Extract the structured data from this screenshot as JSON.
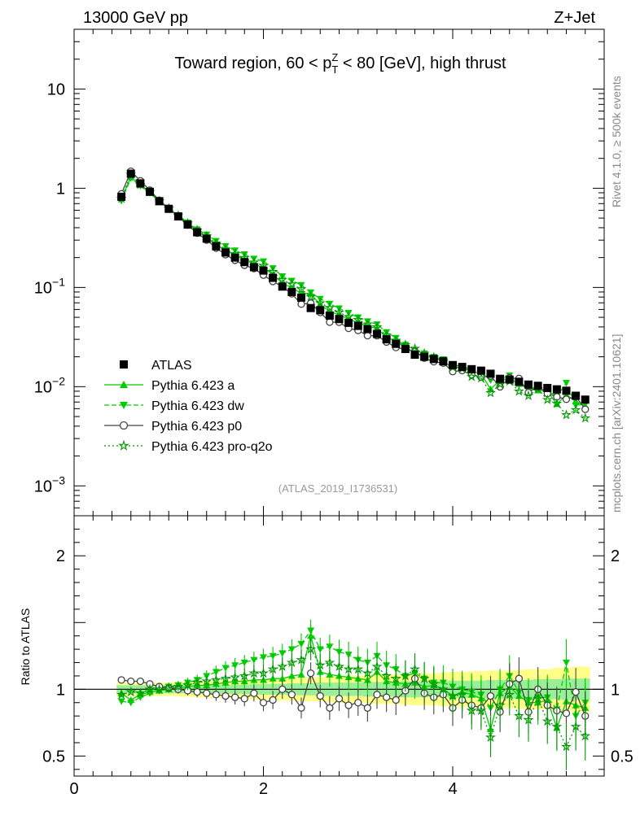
{
  "header": {
    "energy": "13000 GeV pp",
    "process": "Z+Jet"
  },
  "side_labels": {
    "rivet": "Rivet 4.1.0, ≥ 500k events",
    "site": "mcplots.cern.ch [arXiv:2401.10621]"
  },
  "chart_data": {
    "type": "line",
    "title_pre": "Toward region, 60 < p",
    "title_sup": "Z",
    "title_sub": "T",
    "title_post": " < 80 [GeV], high thrust",
    "watermark": "(ATLAS_2019_I1736531)",
    "xlim": [
      0,
      5.6
    ],
    "ylim": [
      0.0005,
      40
    ],
    "yscale": "log",
    "ratio_ylabel": "Ratio to ATLAS",
    "ratio_ylim": [
      0.35,
      2.3
    ],
    "main_ytick_labels": [
      {
        "value": 10,
        "base": "10",
        "exp": ""
      },
      {
        "value": 1,
        "base": "1",
        "exp": ""
      },
      {
        "value": 0.1,
        "base": "10",
        "exp": "−1"
      },
      {
        "value": 0.01,
        "base": "10",
        "exp": "−2"
      },
      {
        "value": 0.001,
        "base": "10",
        "exp": "−3"
      }
    ],
    "ratio_ytick_labels": [
      {
        "value": 2,
        "label": "2"
      },
      {
        "value": 1,
        "label": "1"
      },
      {
        "value": 0.5,
        "label": "0.5"
      }
    ],
    "xtick_labels": [
      {
        "value": 0,
        "label": "0"
      },
      {
        "value": 2,
        "label": "2"
      },
      {
        "value": 4,
        "label": "4"
      }
    ],
    "x": [
      0.5,
      0.6,
      0.7,
      0.8,
      0.9,
      1.0,
      1.1,
      1.2,
      1.3,
      1.4,
      1.5,
      1.6,
      1.7,
      1.8,
      1.9,
      2.0,
      2.1,
      2.2,
      2.3,
      2.4,
      2.5,
      2.6,
      2.7,
      2.8,
      2.9,
      3.0,
      3.1,
      3.2,
      3.3,
      3.4,
      3.5,
      3.6,
      3.7,
      3.8,
      3.9,
      4.0,
      4.1,
      4.2,
      4.3,
      4.4,
      4.5,
      4.6,
      4.7,
      4.8,
      4.9,
      5.0,
      5.1,
      5.2,
      5.3,
      5.4
    ],
    "series": [
      {
        "name": "ATLAS",
        "role": "data",
        "color": "#000000",
        "marker": "square",
        "values": [
          0.82,
          1.4,
          1.12,
          0.92,
          0.74,
          0.62,
          0.52,
          0.43,
          0.36,
          0.31,
          0.26,
          0.225,
          0.2,
          0.18,
          0.16,
          0.148,
          0.125,
          0.102,
          0.09,
          0.079,
          0.062,
          0.059,
          0.052,
          0.048,
          0.044,
          0.041,
          0.038,
          0.034,
          0.03,
          0.027,
          0.024,
          0.021,
          0.02,
          0.019,
          0.018,
          0.0165,
          0.0158,
          0.015,
          0.0145,
          0.0135,
          0.012,
          0.0118,
          0.0112,
          0.0105,
          0.0102,
          0.0097,
          0.0094,
          0.0091,
          0.0081,
          0.0074
        ]
      },
      {
        "name": "Pythia 6.423 a",
        "color": "#00cc00",
        "marker": "triangle-up",
        "dash": "",
        "ratio": [
          0.97,
          0.92,
          0.96,
          0.98,
          0.99,
          1.0,
          1.01,
          1.02,
          1.03,
          1.03,
          1.04,
          1.05,
          1.06,
          1.06,
          1.07,
          1.07,
          1.08,
          1.08,
          1.1,
          1.11,
          1.4,
          1.13,
          1.11,
          1.1,
          1.09,
          1.08,
          1.07,
          1.13,
          1.06,
          1.05,
          1.04,
          1.05,
          1.02,
          1.03,
          1.0,
          0.95,
          0.98,
          0.96,
          0.93,
          0.7,
          0.97,
          1.02,
          0.95,
          0.9,
          0.9,
          0.92,
          0.71,
          0.91,
          0.88,
          0.86
        ]
      },
      {
        "name": "Pythia 6.423 dw",
        "color": "#00cc00",
        "marker": "triangle-down",
        "dash": "6,3",
        "ratio": [
          0.91,
          0.9,
          0.94,
          0.97,
          1.0,
          1.02,
          1.03,
          1.05,
          1.07,
          1.1,
          1.13,
          1.16,
          1.18,
          1.2,
          1.22,
          1.24,
          1.25,
          1.27,
          1.3,
          1.34,
          1.44,
          1.3,
          1.32,
          1.28,
          1.26,
          1.22,
          1.2,
          1.25,
          1.18,
          1.15,
          1.1,
          1.12,
          1.08,
          1.05,
          1.05,
          1.02,
          1.0,
          0.98,
          0.96,
          0.86,
          1.0,
          1.1,
          0.98,
          0.92,
          0.94,
          0.94,
          0.85,
          1.2,
          0.8,
          0.9
        ]
      },
      {
        "name": "Pythia 6.423 p0",
        "color": "#444444",
        "marker": "circle-open",
        "dash": "",
        "ratio": [
          1.07,
          1.06,
          1.06,
          1.04,
          1.02,
          1.01,
          1.0,
          0.99,
          0.98,
          0.97,
          0.96,
          0.95,
          0.94,
          0.93,
          0.97,
          0.9,
          0.92,
          1.0,
          0.96,
          0.86,
          1.12,
          0.95,
          0.86,
          0.93,
          0.88,
          0.9,
          0.86,
          0.96,
          0.94,
          0.92,
          0.99,
          1.08,
          0.97,
          0.94,
          0.96,
          0.86,
          0.92,
          0.88,
          0.86,
          0.95,
          0.83,
          1.04,
          1.08,
          0.83,
          1.0,
          0.88,
          0.84,
          0.82,
          0.98,
          0.8
        ]
      },
      {
        "name": "Pythia 6.423 pro-q2o",
        "color": "#009900",
        "marker": "star",
        "dash": "2,3",
        "ratio": [
          0.96,
          0.98,
          0.97,
          1.0,
          1.0,
          1.01,
          1.02,
          1.03,
          1.05,
          1.06,
          1.07,
          1.08,
          1.09,
          1.1,
          1.12,
          1.12,
          1.15,
          1.17,
          1.2,
          1.22,
          1.3,
          1.18,
          1.2,
          1.17,
          1.15,
          1.15,
          1.12,
          1.17,
          1.1,
          1.08,
          1.1,
          1.15,
          1.08,
          1.04,
          1.0,
          0.95,
          0.96,
          0.84,
          0.84,
          0.64,
          0.88,
          0.96,
          0.8,
          0.77,
          0.93,
          0.76,
          0.72,
          0.57,
          0.72,
          0.65
        ]
      }
    ],
    "band_inner_frac": [
      0.03,
      0.03,
      0.03,
      0.03,
      0.03,
      0.03,
      0.03,
      0.03,
      0.03,
      0.03,
      0.035,
      0.035,
      0.035,
      0.035,
      0.04,
      0.04,
      0.04,
      0.04,
      0.045,
      0.045,
      0.045,
      0.05,
      0.05,
      0.05,
      0.05,
      0.05,
      0.055,
      0.055,
      0.055,
      0.055,
      0.06,
      0.06,
      0.06,
      0.06,
      0.06,
      0.065,
      0.065,
      0.065,
      0.065,
      0.07,
      0.07,
      0.07,
      0.07,
      0.07,
      0.075,
      0.075,
      0.075,
      0.08,
      0.08,
      0.08
    ],
    "band_outer_frac": [
      0.05,
      0.05,
      0.05,
      0.05,
      0.05,
      0.05,
      0.055,
      0.055,
      0.06,
      0.06,
      0.065,
      0.065,
      0.07,
      0.07,
      0.075,
      0.075,
      0.08,
      0.085,
      0.085,
      0.09,
      0.09,
      0.09,
      0.095,
      0.1,
      0.1,
      0.1,
      0.105,
      0.11,
      0.11,
      0.11,
      0.115,
      0.12,
      0.12,
      0.12,
      0.125,
      0.13,
      0.13,
      0.135,
      0.135,
      0.14,
      0.14,
      0.14,
      0.145,
      0.15,
      0.15,
      0.15,
      0.16,
      0.16,
      0.17,
      0.17
    ]
  }
}
